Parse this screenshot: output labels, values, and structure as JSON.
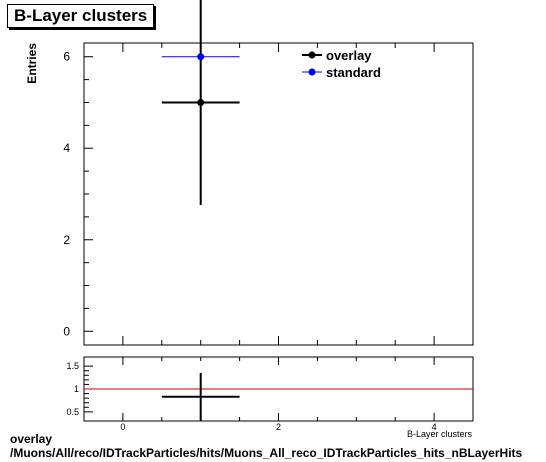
{
  "chart_data": [
    {
      "type": "scatter",
      "title": "B-Layer clusters",
      "xlabel": "B-Layer clusters",
      "ylabel": "Entries",
      "xlim": [
        -0.5,
        4.5
      ],
      "ylim": [
        -0.3,
        6.3
      ],
      "x_ticks": [
        "0",
        "2",
        "4"
      ],
      "y_ticks": [
        "0",
        "2",
        "4",
        "6"
      ],
      "legend_position": "top-right",
      "series": [
        {
          "name": "overlay",
          "color": "#000000",
          "points": [
            {
              "x": 1,
              "y": 5,
              "x_err": 0.5,
              "y_err": 2.24
            }
          ]
        },
        {
          "name": "standard",
          "color": "#0000ff",
          "points": [
            {
              "x": 1,
              "y": 6,
              "x_err": 0.5,
              "y_err": 0
            }
          ]
        }
      ]
    },
    {
      "type": "scatter",
      "title": "",
      "xlim": [
        -0.5,
        4.5
      ],
      "ylim": [
        0.3,
        1.7
      ],
      "y_ticks": [
        "0.5",
        "1",
        "1.5"
      ],
      "reference_line": {
        "y": 1,
        "color": "#cc0000"
      },
      "series": [
        {
          "name": "",
          "color": "#000000",
          "points": [
            {
              "x": 1,
              "y": 0.83,
              "x_err": 0.5,
              "y_err": 0.52
            }
          ]
        }
      ]
    }
  ],
  "footer": {
    "line1": "overlay",
    "line2": "/Muons/All/reco/IDTrackParticles/hits/Muons_All_reco_IDTrackParticles_hits_nBLayerHits"
  }
}
